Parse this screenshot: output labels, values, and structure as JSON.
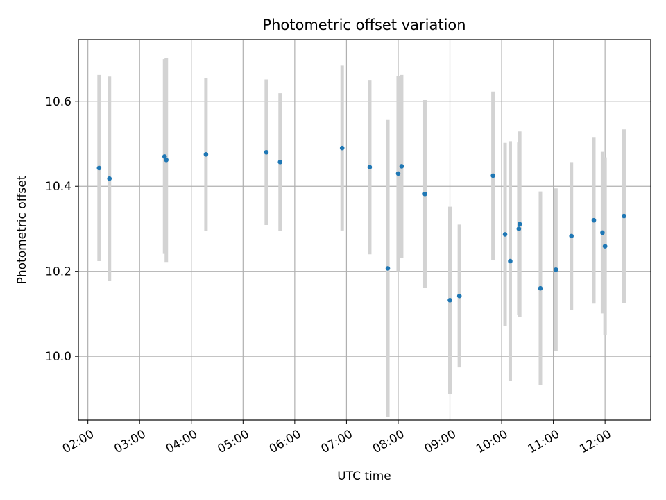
{
  "chart_data": {
    "type": "scatter",
    "title": "Photometric offset variation",
    "xlabel": "UTC time",
    "ylabel": "Photometric offset",
    "x_axis_type": "time",
    "xlim": [
      "01:49",
      "12:53"
    ],
    "ylim": [
      9.85,
      10.745
    ],
    "grid": true,
    "x_ticks": [
      "02:00",
      "03:00",
      "04:00",
      "05:00",
      "06:00",
      "07:00",
      "08:00",
      "09:00",
      "10:00",
      "11:00",
      "12:00"
    ],
    "y_ticks": [
      "10.0",
      "10.2",
      "10.4",
      "10.6"
    ],
    "y_tick_values": [
      10.0,
      10.2,
      10.4,
      10.6
    ],
    "colors": {
      "marker": "#1f77b4",
      "errorbar": "#d3d3d3",
      "grid": "#b0b0b0"
    },
    "points": [
      {
        "x": "02:13",
        "y": 10.443,
        "err": 0.219
      },
      {
        "x": "02:25",
        "y": 10.418,
        "err": 0.24
      },
      {
        "x": "03:29",
        "y": 10.47,
        "err": 0.229
      },
      {
        "x": "03:31",
        "y": 10.462,
        "err": 0.24
      },
      {
        "x": "04:17",
        "y": 10.475,
        "err": 0.18
      },
      {
        "x": "05:27",
        "y": 10.48,
        "err": 0.171
      },
      {
        "x": "05:43",
        "y": 10.457,
        "err": 0.162
      },
      {
        "x": "06:55",
        "y": 10.49,
        "err": 0.194
      },
      {
        "x": "07:27",
        "y": 10.445,
        "err": 0.205
      },
      {
        "x": "07:48",
        "y": 10.207,
        "err": 0.349
      },
      {
        "x": "08:00",
        "y": 10.43,
        "err": 0.23
      },
      {
        "x": "08:04",
        "y": 10.447,
        "err": 0.215
      },
      {
        "x": "08:31",
        "y": 10.382,
        "err": 0.221
      },
      {
        "x": "09:00",
        "y": 10.132,
        "err": 0.22
      },
      {
        "x": "09:11",
        "y": 10.142,
        "err": 0.168
      },
      {
        "x": "09:50",
        "y": 10.425,
        "err": 0.198
      },
      {
        "x": "10:04",
        "y": 10.287,
        "err": 0.215
      },
      {
        "x": "10:10",
        "y": 10.224,
        "err": 0.282
      },
      {
        "x": "10:20",
        "y": 10.3,
        "err": 0.203
      },
      {
        "x": "10:21",
        "y": 10.311,
        "err": 0.218
      },
      {
        "x": "10:45",
        "y": 10.16,
        "err": 0.228
      },
      {
        "x": "11:03",
        "y": 10.204,
        "err": 0.191
      },
      {
        "x": "11:21",
        "y": 10.283,
        "err": 0.174
      },
      {
        "x": "11:47",
        "y": 10.32,
        "err": 0.196
      },
      {
        "x": "11:57",
        "y": 10.291,
        "err": 0.19
      },
      {
        "x": "12:00",
        "y": 10.259,
        "err": 0.209
      },
      {
        "x": "12:22",
        "y": 10.33,
        "err": 0.204
      }
    ]
  }
}
